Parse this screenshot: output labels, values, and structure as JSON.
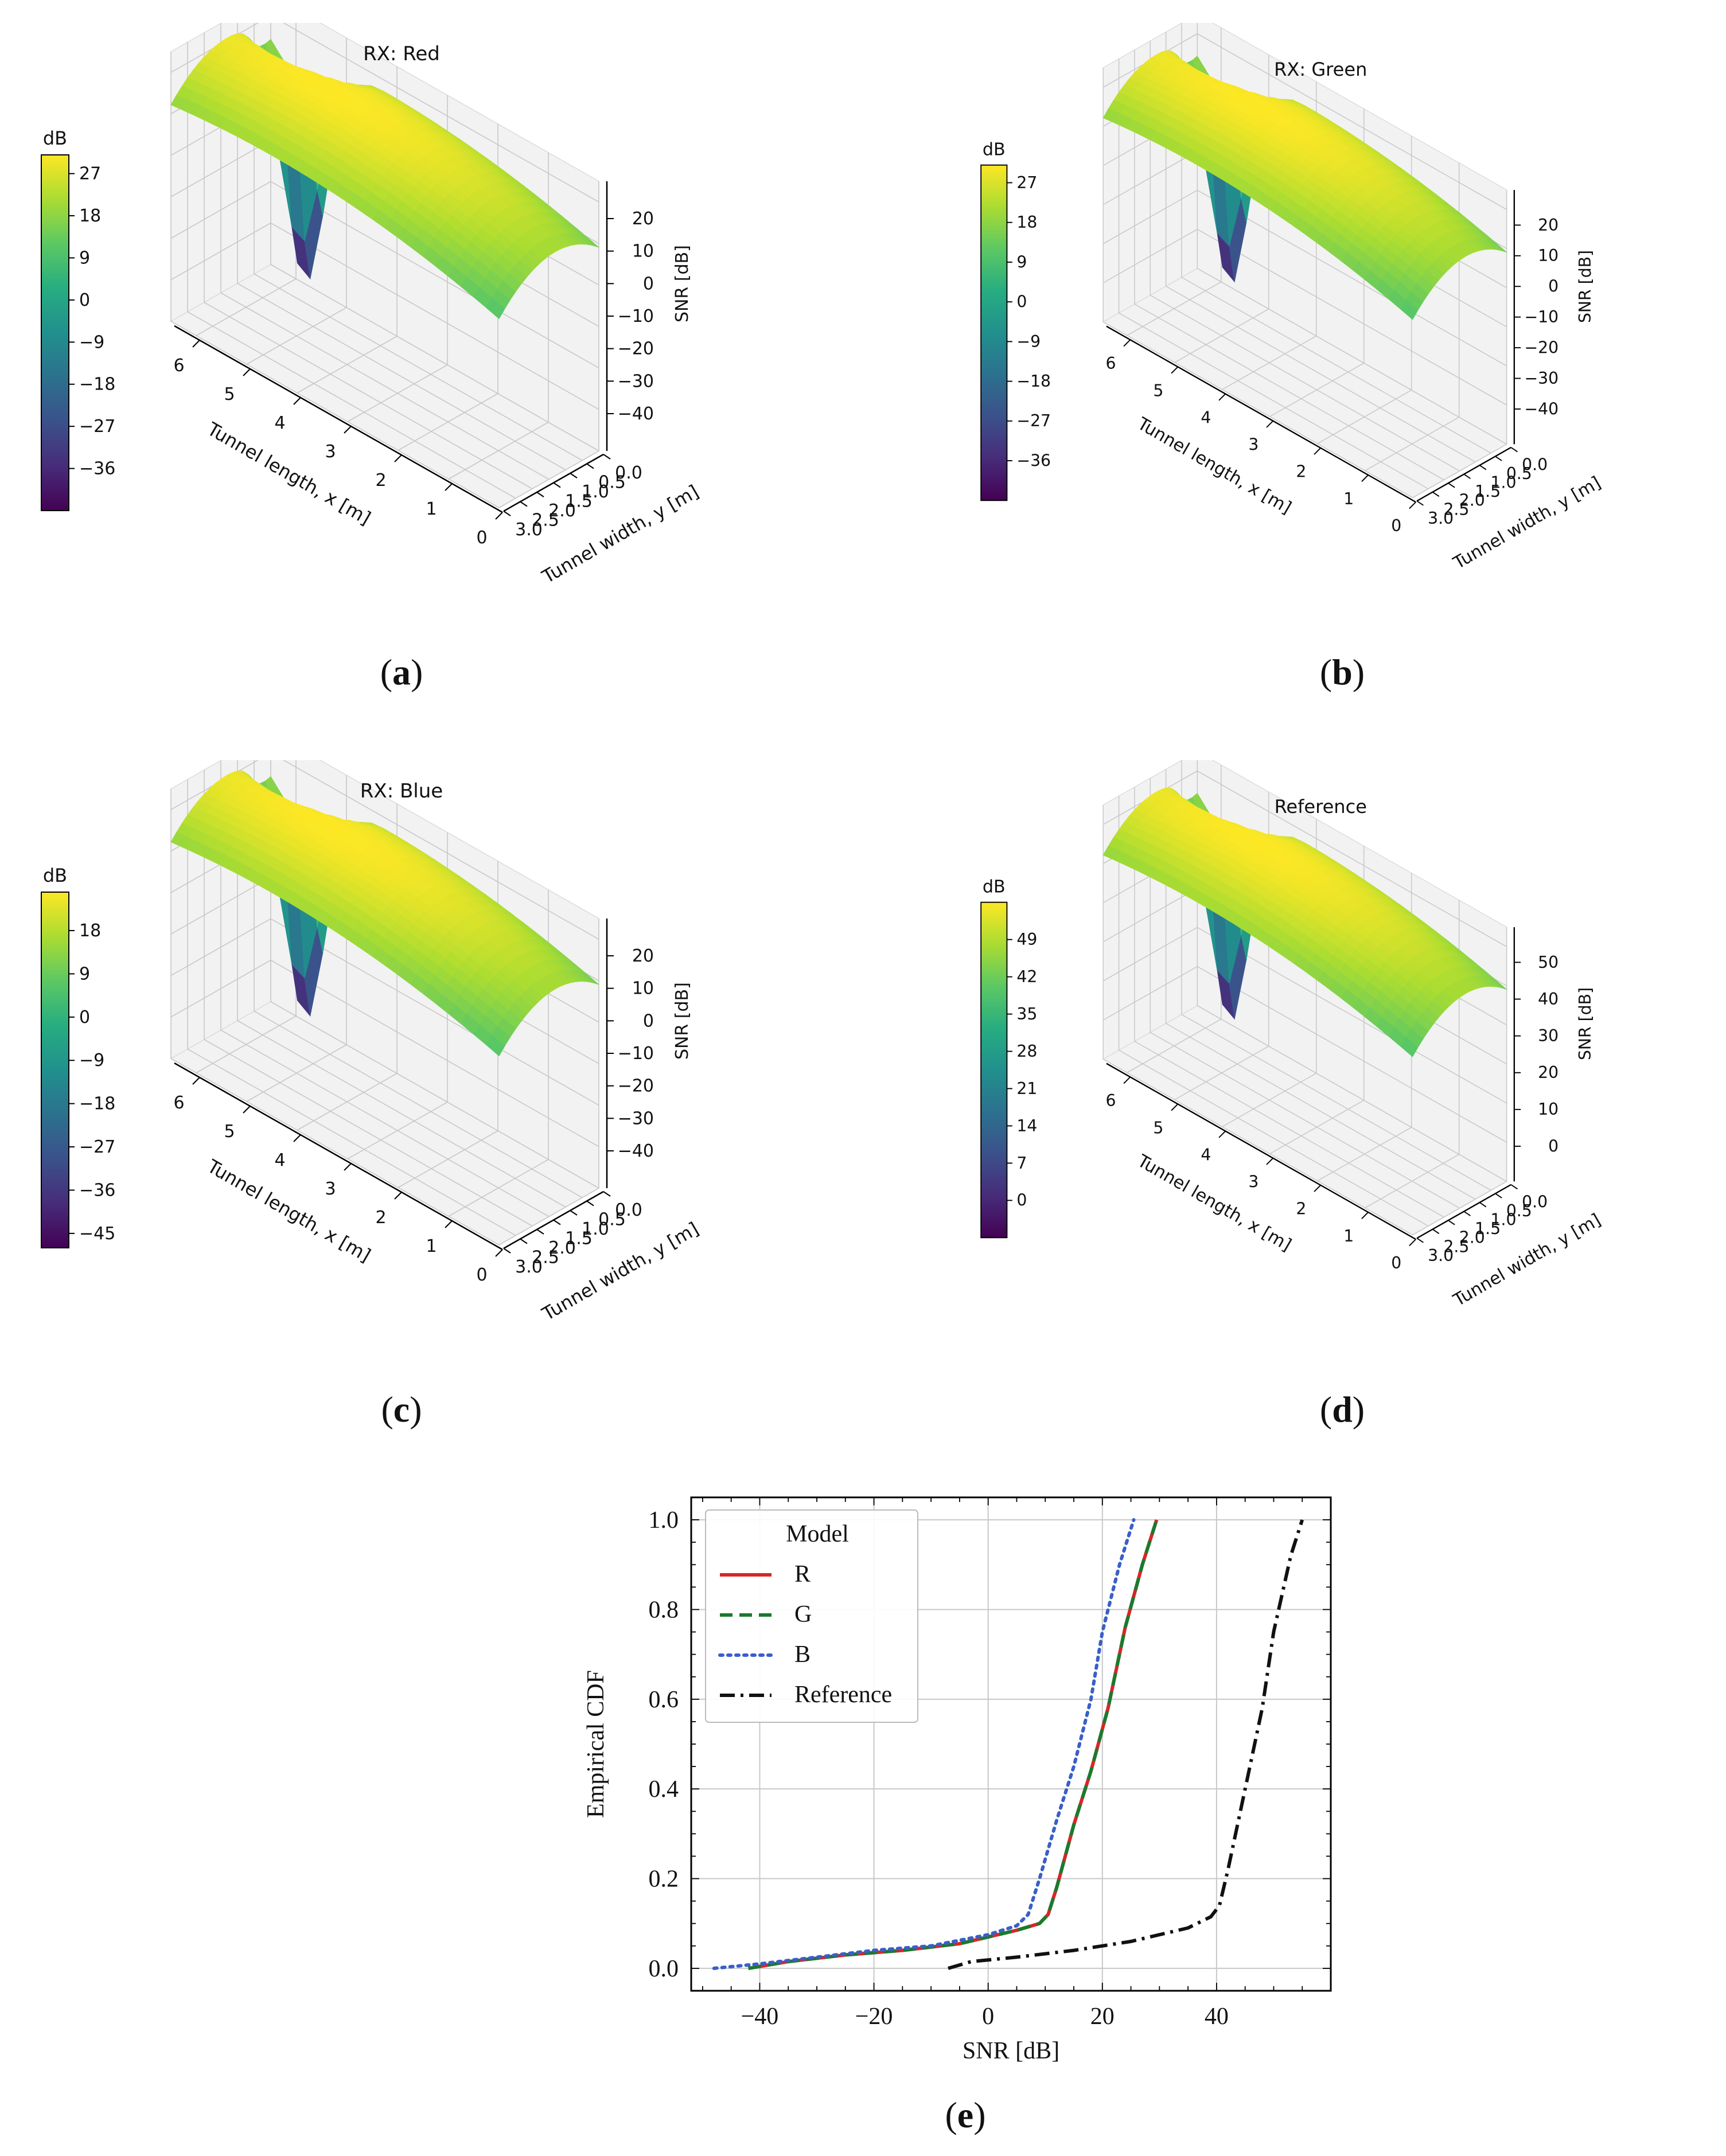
{
  "colors": {
    "viridis": [
      "#440154",
      "#472c7a",
      "#3b518b",
      "#2c718e",
      "#21908d",
      "#27ad81",
      "#5cc863",
      "#aadc32",
      "#fde725"
    ],
    "pane": "#f2f2f2",
    "grid": "#c8c8c8",
    "R": "#d62728",
    "G": "#1a7a2e",
    "B": "#3a5fc8",
    "Reference": "#111111"
  },
  "panels": [
    {
      "id": "a",
      "caption": "a",
      "title": "RX: Red",
      "colorbar": {
        "label": "dB",
        "ticks": [
          "27",
          "18",
          "9",
          "0",
          "−9",
          "−18",
          "−27",
          "−36"
        ],
        "range": [
          -45,
          31
        ]
      },
      "z_axis": {
        "label": "SNR [dB]",
        "ticks": [
          "20",
          "10",
          "0",
          "−10",
          "−20",
          "−30",
          "−40"
        ]
      },
      "x_axis": {
        "label": "Tunnel length, x [m]",
        "ticks": [
          "6",
          "5",
          "4",
          "3",
          "2",
          "1",
          "0"
        ]
      },
      "y_axis": {
        "label": "Tunnel width, y [m]",
        "ticks": [
          "0.0",
          "0.5",
          "1.0",
          "1.5",
          "2.0",
          "2.5",
          "3.0"
        ]
      }
    },
    {
      "id": "b",
      "caption": "b",
      "title": "RX: Green",
      "colorbar": {
        "label": "dB",
        "ticks": [
          "27",
          "18",
          "9",
          "0",
          "−9",
          "−18",
          "−27",
          "−36"
        ],
        "range": [
          -45,
          31
        ]
      },
      "z_axis": {
        "label": "SNR [dB]",
        "ticks": [
          "20",
          "10",
          "0",
          "−10",
          "−20",
          "−30",
          "−40"
        ]
      },
      "x_axis": {
        "label": "Tunnel length, x [m]",
        "ticks": [
          "6",
          "5",
          "4",
          "3",
          "2",
          "1",
          "0"
        ]
      },
      "y_axis": {
        "label": "Tunnel width, y [m]",
        "ticks": [
          "0.0",
          "0.5",
          "1.0",
          "1.5",
          "2.0",
          "2.5",
          "3.0"
        ]
      }
    },
    {
      "id": "c",
      "caption": "c",
      "title": "RX: Blue",
      "colorbar": {
        "label": "dB",
        "ticks": [
          "18",
          "9",
          "0",
          "−9",
          "−18",
          "−27",
          "−36",
          "−45"
        ],
        "range": [
          -48,
          26
        ]
      },
      "z_axis": {
        "label": "SNR [dB]",
        "ticks": [
          "20",
          "10",
          "0",
          "−10",
          "−20",
          "−30",
          "−40"
        ]
      },
      "x_axis": {
        "label": "Tunnel length, x [m]",
        "ticks": [
          "6",
          "5",
          "4",
          "3",
          "2",
          "1",
          "0"
        ]
      },
      "y_axis": {
        "label": "Tunnel width, y [m]",
        "ticks": [
          "0.0",
          "0.5",
          "1.0",
          "1.5",
          "2.0",
          "2.5",
          "3.0"
        ]
      }
    },
    {
      "id": "d",
      "caption": "d",
      "title": "Reference",
      "colorbar": {
        "label": "dB",
        "ticks": [
          "49",
          "42",
          "35",
          "28",
          "21",
          "14",
          "7",
          "0"
        ],
        "range": [
          -7,
          56
        ]
      },
      "z_axis": {
        "label": "SNR [dB]",
        "ticks": [
          "50",
          "40",
          "30",
          "20",
          "10",
          "0"
        ]
      },
      "x_axis": {
        "label": "Tunnel length, x [m]",
        "ticks": [
          "6",
          "5",
          "4",
          "3",
          "2",
          "1",
          "0"
        ]
      },
      "y_axis": {
        "label": "Tunnel width, y [m]",
        "ticks": [
          "0.0",
          "0.5",
          "1.0",
          "1.5",
          "2.0",
          "2.5",
          "3.0"
        ]
      }
    }
  ],
  "chart_data": {
    "type": "line",
    "caption": "e",
    "title": "",
    "xlabel": "SNR [dB]",
    "ylabel": "Empirical CDF",
    "xlim": [
      -52,
      60
    ],
    "ylim": [
      -0.05,
      1.05
    ],
    "xticks": [
      -40,
      -20,
      0,
      20,
      40
    ],
    "xtick_labels": [
      "−40",
      "−20",
      "0",
      "20",
      "40"
    ],
    "yticks": [
      0.0,
      0.2,
      0.4,
      0.6,
      0.8,
      1.0
    ],
    "ytick_labels": [
      "0.0",
      "0.2",
      "0.4",
      "0.6",
      "0.8",
      "1.0"
    ],
    "grid": true,
    "legend": {
      "title": "Model",
      "position": "top-left"
    },
    "series": [
      {
        "name": "R",
        "style": "solid",
        "points": [
          [
            -42,
            0.0
          ],
          [
            -35,
            0.015
          ],
          [
            -25,
            0.03
          ],
          [
            -15,
            0.04
          ],
          [
            -5,
            0.055
          ],
          [
            0,
            0.07
          ],
          [
            5,
            0.085
          ],
          [
            9,
            0.1
          ],
          [
            10.5,
            0.12
          ],
          [
            12,
            0.18
          ],
          [
            15,
            0.32
          ],
          [
            18,
            0.44
          ],
          [
            21,
            0.58
          ],
          [
            24,
            0.76
          ],
          [
            27,
            0.9
          ],
          [
            29.5,
            1.0
          ]
        ]
      },
      {
        "name": "G",
        "style": "dashed",
        "points": [
          [
            -42,
            0.0
          ],
          [
            -35,
            0.015
          ],
          [
            -25,
            0.03
          ],
          [
            -15,
            0.04
          ],
          [
            -5,
            0.055
          ],
          [
            0,
            0.07
          ],
          [
            5,
            0.085
          ],
          [
            9,
            0.1
          ],
          [
            10.5,
            0.12
          ],
          [
            12,
            0.18
          ],
          [
            15,
            0.32
          ],
          [
            18,
            0.44
          ],
          [
            21,
            0.58
          ],
          [
            24,
            0.76
          ],
          [
            27,
            0.9
          ],
          [
            29.5,
            1.0
          ]
        ]
      },
      {
        "name": "B",
        "style": "dotted",
        "points": [
          [
            -48,
            0.0
          ],
          [
            -40,
            0.01
          ],
          [
            -30,
            0.025
          ],
          [
            -20,
            0.04
          ],
          [
            -10,
            0.05
          ],
          [
            0,
            0.075
          ],
          [
            5,
            0.095
          ],
          [
            7,
            0.12
          ],
          [
            9,
            0.2
          ],
          [
            12,
            0.33
          ],
          [
            15,
            0.45
          ],
          [
            18,
            0.6
          ],
          [
            20,
            0.75
          ],
          [
            23,
            0.9
          ],
          [
            25.5,
            1.0
          ]
        ]
      },
      {
        "name": "Reference",
        "style": "dashdot",
        "points": [
          [
            -7,
            0.0
          ],
          [
            -3,
            0.015
          ],
          [
            5,
            0.025
          ],
          [
            15,
            0.04
          ],
          [
            25,
            0.06
          ],
          [
            35,
            0.09
          ],
          [
            39,
            0.115
          ],
          [
            40.5,
            0.14
          ],
          [
            42,
            0.22
          ],
          [
            45,
            0.4
          ],
          [
            48,
            0.58
          ],
          [
            50,
            0.75
          ],
          [
            53,
            0.92
          ],
          [
            55,
            1.0
          ]
        ]
      }
    ]
  }
}
